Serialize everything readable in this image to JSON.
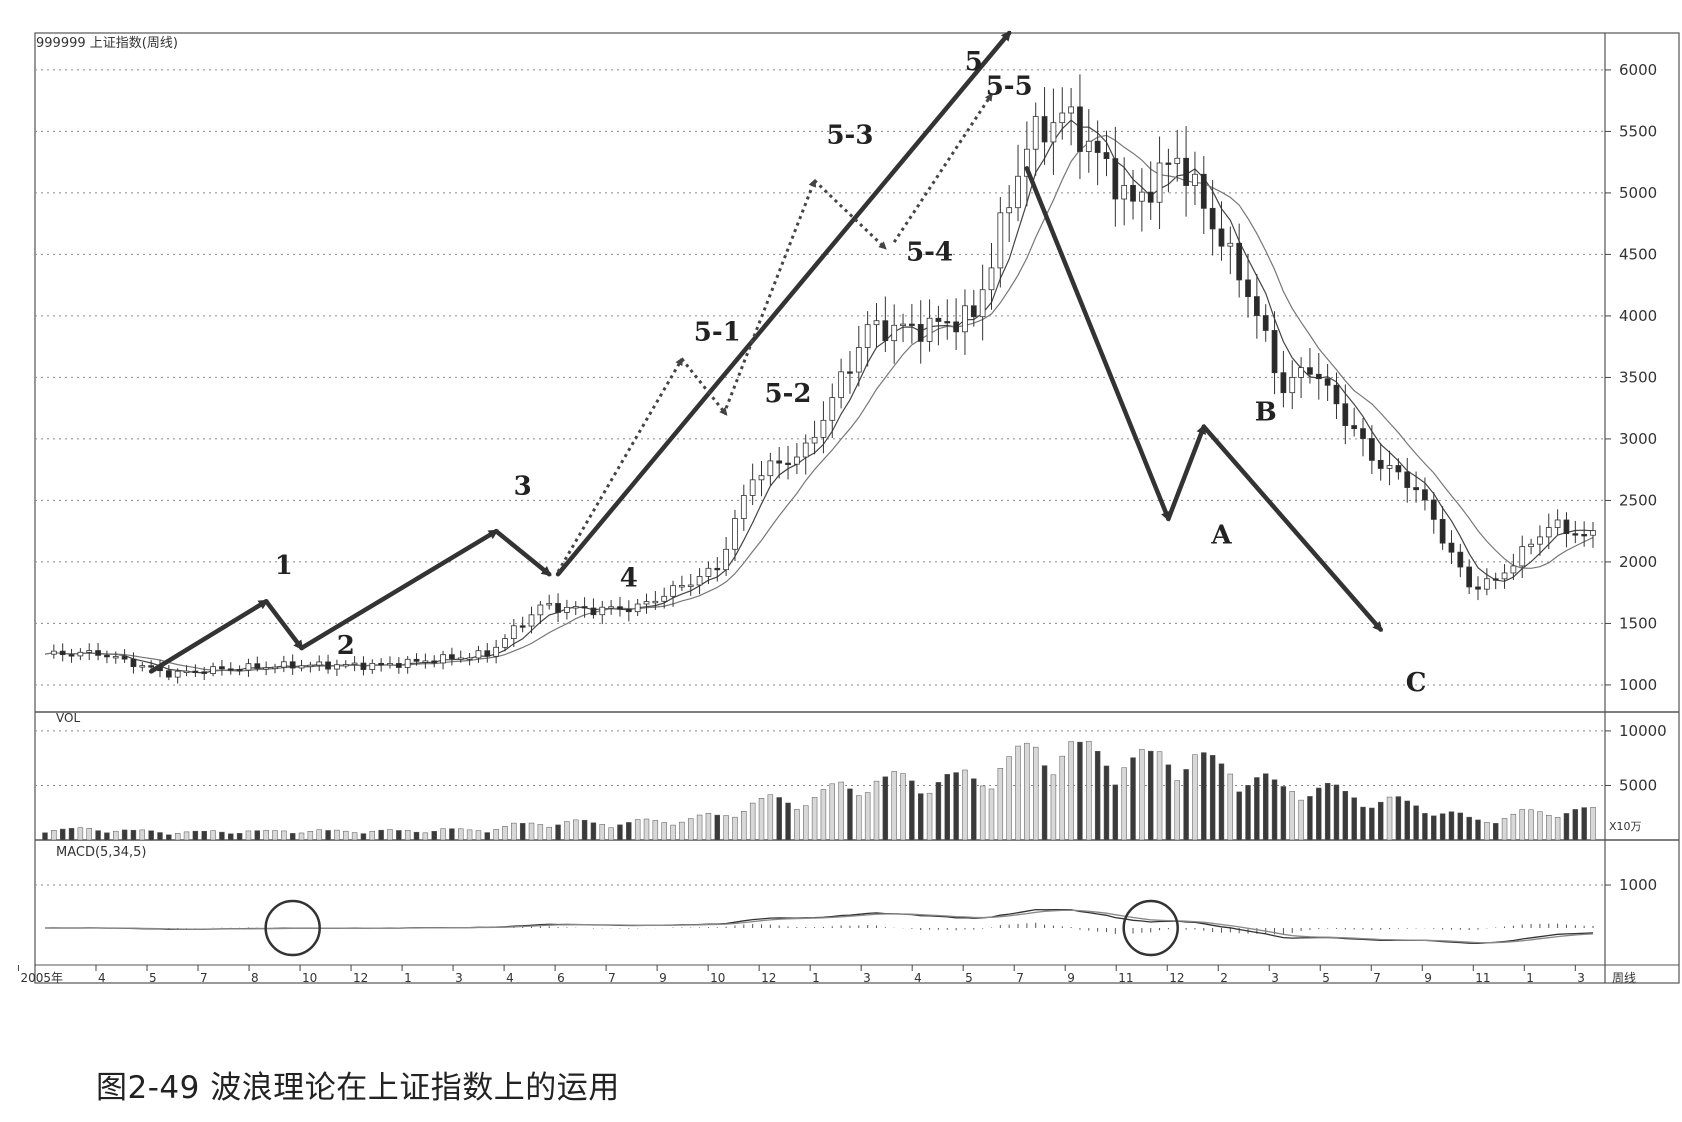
{
  "caption": "图2-49 波浪理论在上证指数上的运用",
  "chart_data": {
    "type": "candlestick",
    "title": "999999 上证指数(周线)",
    "price_axis": {
      "ticks": [
        1000,
        1500,
        2000,
        2500,
        3000,
        3500,
        4000,
        4500,
        5000,
        5500,
        6000
      ],
      "ylim": [
        780,
        6300
      ]
    },
    "x_axis": {
      "ticks": [
        "2005年",
        "4",
        "5",
        "7",
        "8",
        "10",
        "12",
        "1",
        "3",
        "4",
        "6",
        "7",
        "9",
        "10",
        "12",
        "1",
        "3",
        "4",
        "5",
        "7",
        "9",
        "11",
        "12",
        "2",
        "3",
        "5",
        "7",
        "9",
        "11",
        "1",
        "3"
      ],
      "end_label": "周线",
      "weeks": 175
    },
    "price_path_key_points": [
      {
        "week": 0,
        "close": 1250
      },
      {
        "week": 6,
        "close": 1260
      },
      {
        "week": 14,
        "close": 1090
      },
      {
        "week": 20,
        "close": 1130
      },
      {
        "week": 28,
        "close": 1160
      },
      {
        "week": 38,
        "close": 1160
      },
      {
        "week": 50,
        "close": 1250
      },
      {
        "week": 56,
        "close": 1640
      },
      {
        "week": 62,
        "close": 1610
      },
      {
        "week": 67,
        "close": 1630
      },
      {
        "week": 76,
        "close": 1950
      },
      {
        "week": 80,
        "close": 2700
      },
      {
        "week": 86,
        "close": 2900
      },
      {
        "week": 93,
        "close": 3900
      },
      {
        "week": 99,
        "close": 3900
      },
      {
        "week": 105,
        "close": 4000
      },
      {
        "week": 111,
        "close": 5400
      },
      {
        "week": 115,
        "close": 5650
      },
      {
        "week": 118,
        "close": 5400
      },
      {
        "week": 123,
        "close": 4900
      },
      {
        "week": 128,
        "close": 5300
      },
      {
        "week": 136,
        "close": 4200
      },
      {
        "week": 140,
        "close": 3400
      },
      {
        "week": 143,
        "close": 3600
      },
      {
        "week": 150,
        "close": 2850
      },
      {
        "week": 155,
        "close": 2600
      },
      {
        "week": 161,
        "close": 1800
      },
      {
        "week": 164,
        "close": 1850
      },
      {
        "week": 168,
        "close": 2150
      },
      {
        "week": 170,
        "close": 2300
      },
      {
        "week": 175,
        "close": 2200
      }
    ],
    "wave_labels": [
      {
        "label": "1",
        "week": 27,
        "price": 1900
      },
      {
        "label": "2",
        "week": 34,
        "price": 1250
      },
      {
        "label": "3",
        "week": 54,
        "price": 2550
      },
      {
        "label": "4",
        "week": 66,
        "price": 1800
      },
      {
        "label": "5",
        "week": 105,
        "price": 6000
      },
      {
        "label": "5-1",
        "week": 76,
        "price": 3800
      },
      {
        "label": "5-2",
        "week": 84,
        "price": 3300
      },
      {
        "label": "5-3",
        "week": 91,
        "price": 5400
      },
      {
        "label": "5-4",
        "week": 100,
        "price": 4450
      },
      {
        "label": "5-5",
        "week": 109,
        "price": 5800
      },
      {
        "label": "A",
        "week": 133,
        "price": 2150
      },
      {
        "label": "B",
        "week": 138,
        "price": 3150
      },
      {
        "label": "C",
        "week": 155,
        "price": 950
      }
    ],
    "volume_panel": {
      "label": "VOL",
      "ticks": [
        5000,
        10000
      ],
      "ylim": [
        0,
        11000
      ],
      "unit_label": "X10万"
    },
    "macd_panel": {
      "label": "MACD(5,34,5)",
      "ticks": [
        1000
      ]
    },
    "grid": true,
    "colors": {
      "line": "#333333",
      "dotted_grid": "#8a8a8a",
      "candle_up": "#ffffff",
      "candle_down": "#2a2a2a"
    }
  }
}
